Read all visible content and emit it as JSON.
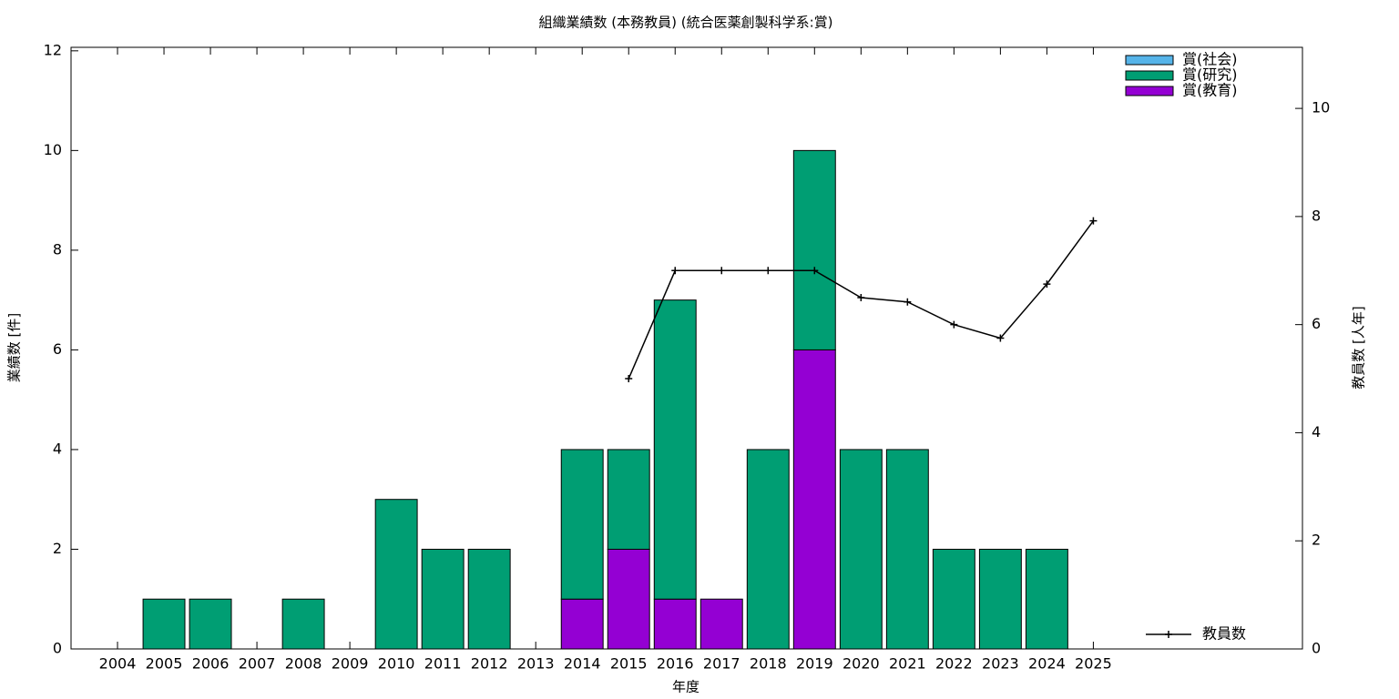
{
  "chart_data": {
    "type": "bar",
    "title": "組織業績数 (本務教員) (統合医薬創製科学系:賞)",
    "xlabel": "年度",
    "ylabel": "業績数 [件]",
    "y2label": "教員数 [人年]",
    "x": [
      2004,
      2005,
      2006,
      2007,
      2008,
      2009,
      2010,
      2011,
      2012,
      2013,
      2014,
      2015,
      2016,
      2017,
      2018,
      2019,
      2020,
      2021,
      2022,
      2023,
      2024,
      2025
    ],
    "xlim": [
      2003,
      2029.5
    ],
    "xticks": [
      2004,
      2005,
      2006,
      2007,
      2008,
      2009,
      2010,
      2011,
      2012,
      2013,
      2014,
      2015,
      2016,
      2017,
      2018,
      2019,
      2020,
      2021,
      2022,
      2023,
      2024,
      2025
    ],
    "ylim": [
      0,
      12.07
    ],
    "yticks": [
      0,
      2,
      4,
      6,
      8,
      10,
      12
    ],
    "y2lim": [
      0,
      11.13
    ],
    "y2ticks": [
      0,
      2,
      4,
      6,
      8,
      10
    ],
    "legend": "top right",
    "series": [
      {
        "name": "賞(社会)",
        "color": "#56b4e9",
        "values": [
          0,
          0,
          0,
          0,
          0,
          0,
          0,
          0,
          0,
          0,
          0,
          0,
          0,
          0,
          0,
          0,
          0,
          0,
          0,
          0,
          0,
          0
        ]
      },
      {
        "name": "賞(研究)",
        "color": "#009e73",
        "values": [
          0,
          1,
          1,
          0,
          1,
          0,
          3,
          2,
          2,
          0,
          3,
          2,
          6,
          0,
          4,
          4,
          4,
          4,
          2,
          2,
          2,
          0
        ]
      },
      {
        "name": "賞(教育)",
        "color": "#9400d3",
        "values": [
          0,
          0,
          0,
          0,
          0,
          0,
          0,
          0,
          0,
          0,
          1,
          2,
          1,
          1,
          0,
          6,
          0,
          0,
          0,
          0,
          0,
          0
        ]
      },
      {
        "name": "教員数",
        "type": "line",
        "axis": "y2",
        "color": "#000000",
        "values": [
          null,
          null,
          null,
          null,
          null,
          null,
          null,
          null,
          null,
          null,
          null,
          5.0,
          7.0,
          7.0,
          7.0,
          7.0,
          6.5,
          6.42,
          6.0,
          5.75,
          6.75,
          7.92
        ]
      }
    ]
  }
}
